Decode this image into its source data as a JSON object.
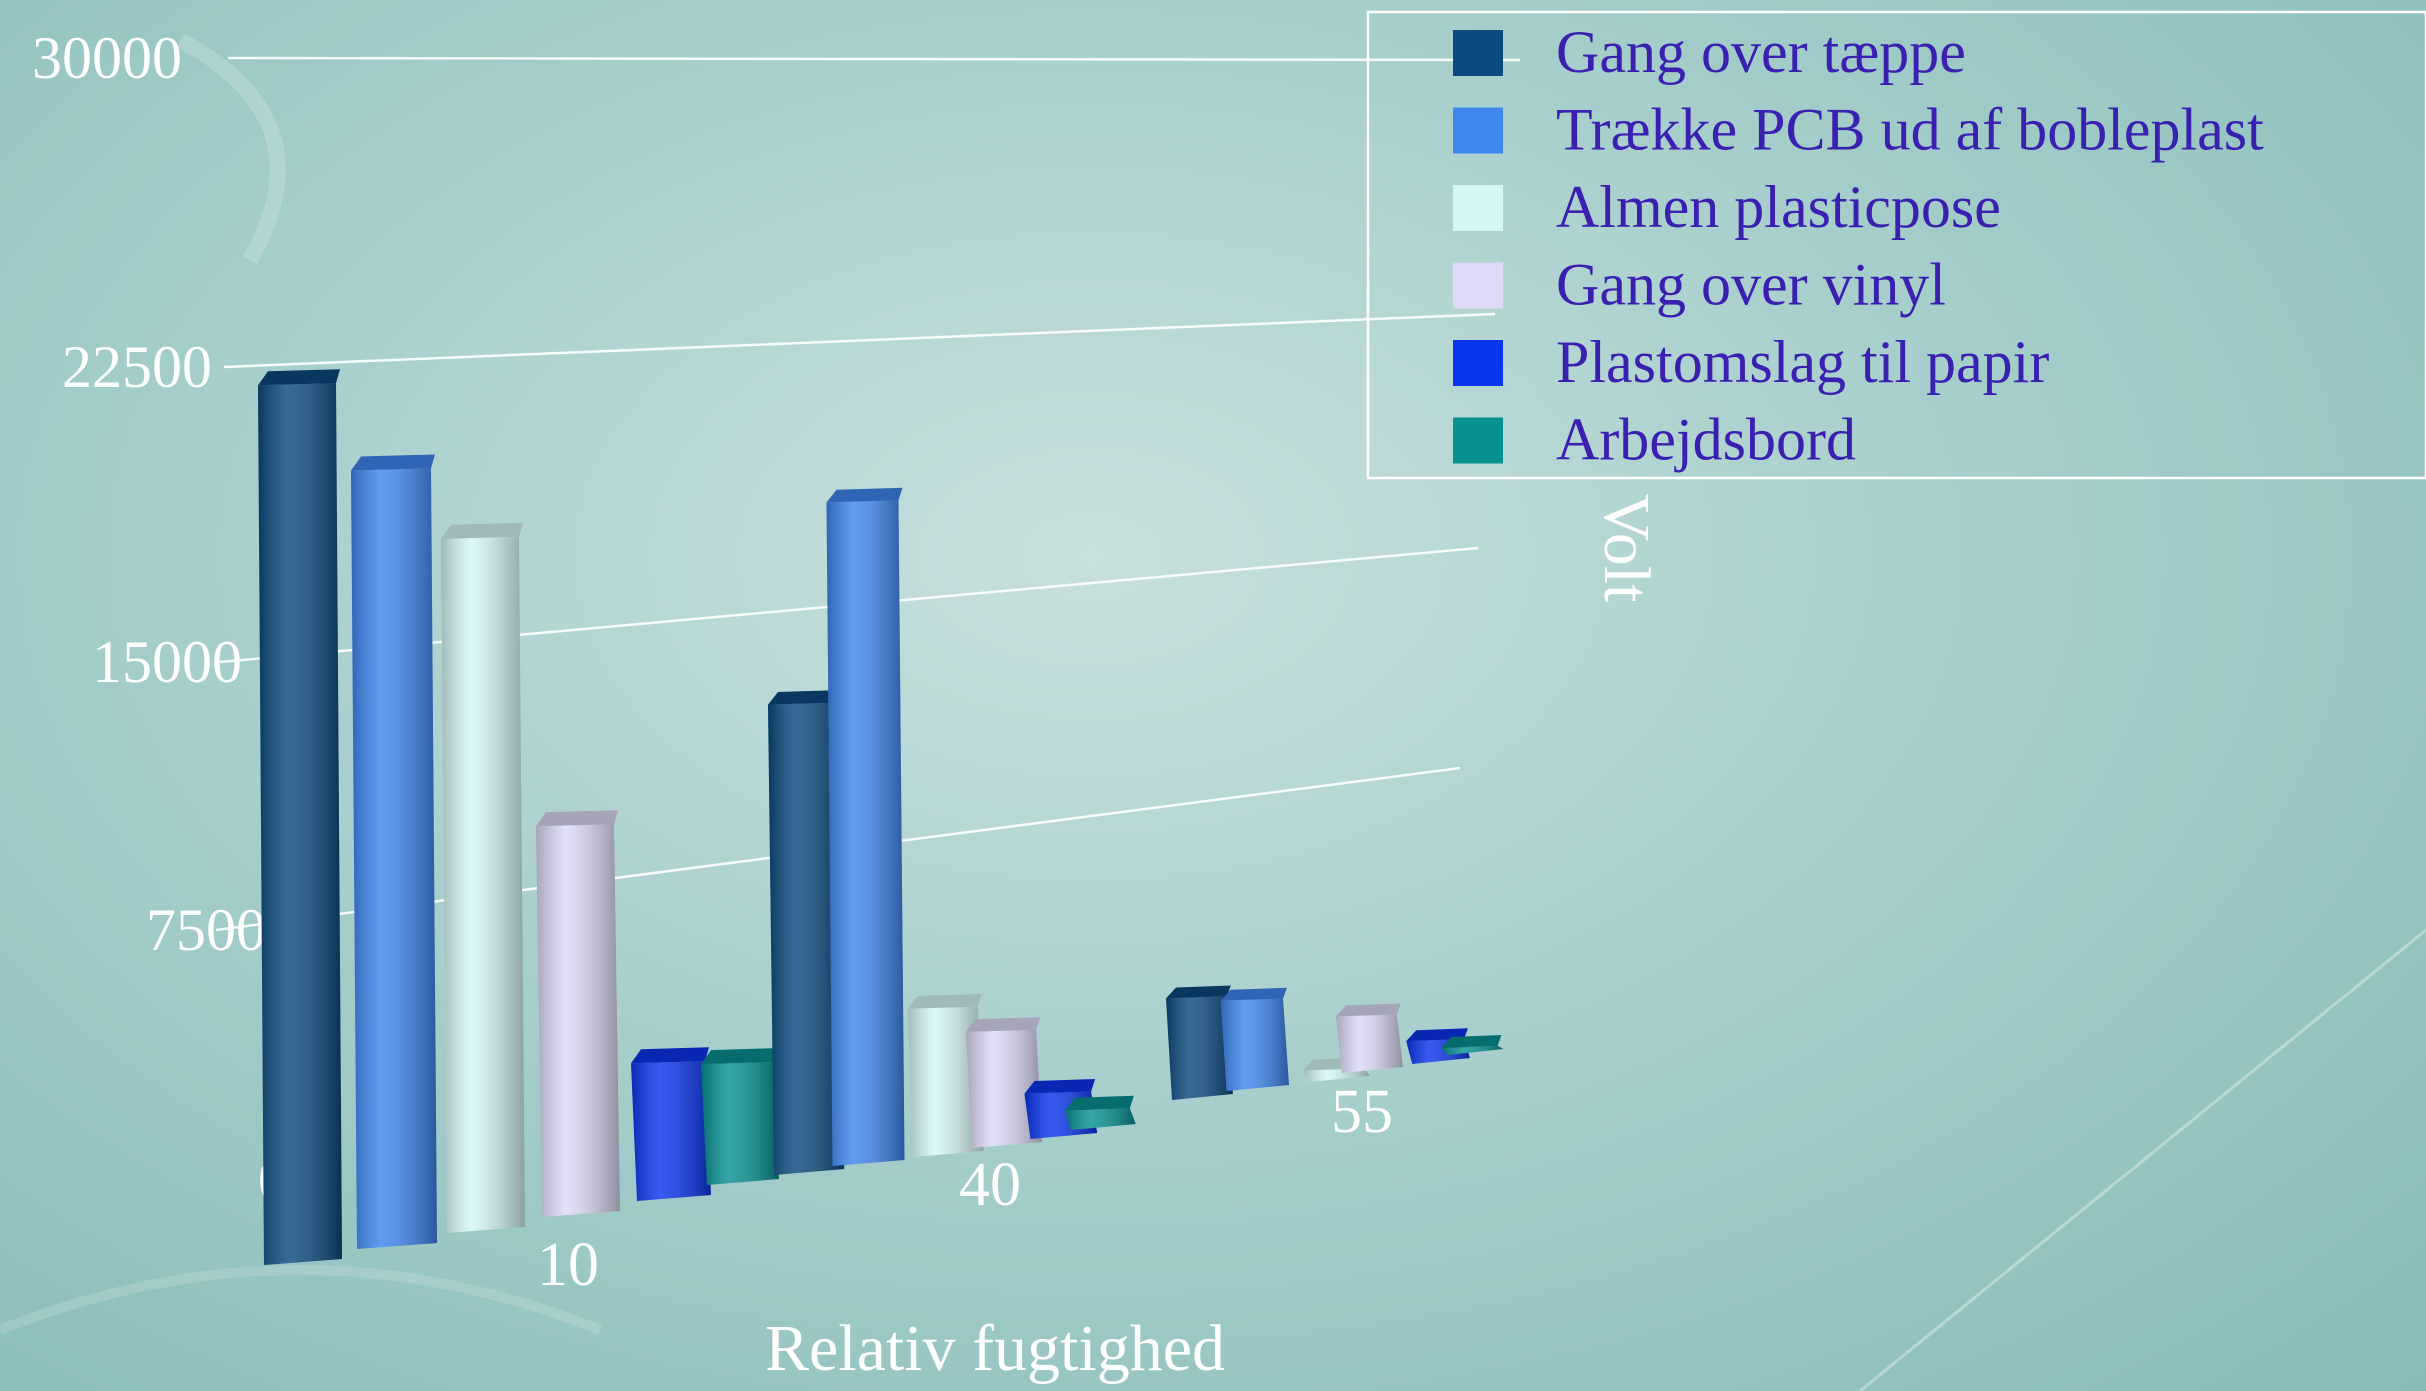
{
  "chart_data": {
    "type": "bar",
    "categories": [
      "10",
      "40",
      "55"
    ],
    "xlabel": "Relativ fugtighed",
    "ylabel": "Volt",
    "ylim": [
      0,
      30000
    ],
    "yticks": [
      "0",
      "7500",
      "15000",
      "22500",
      "30000"
    ],
    "grid": true,
    "legend_position": "top-right",
    "series": [
      {
        "name": "Gang over tæppe",
        "color": "#0a4a7e",
        "values": [
          26500,
          15000,
          5000
        ]
      },
      {
        "name": "Trække PCB ud af bobleplast",
        "color": "#3f86f0",
        "values": [
          23500,
          21000,
          4500
        ]
      },
      {
        "name": "Almen plasticpose",
        "color": "#d6f6f6",
        "values": [
          21000,
          5000,
          1000
        ]
      },
      {
        "name": "Gang over vinyl",
        "color": "#dcdaf6",
        "values": [
          12000,
          4000,
          3000
        ]
      },
      {
        "name": "Plastomslag til papir",
        "color": "#0a35ee",
        "values": [
          4500,
          1800,
          1500
        ]
      },
      {
        "name": "Arbejdsbord",
        "color": "#079191",
        "values": [
          4000,
          1000,
          800
        ]
      }
    ]
  }
}
